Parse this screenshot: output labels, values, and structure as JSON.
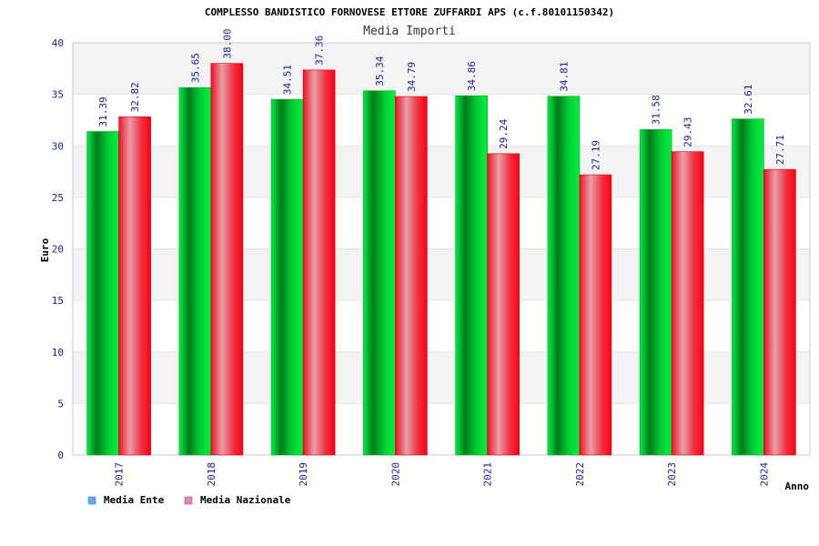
{
  "chart_data": {
    "type": "bar",
    "title": "COMPLESSO BANDISTICO FORNOVESE ETTORE ZUFFARDI APS (c.f.80101150342)",
    "subtitle": "Media Importi",
    "xlabel": "Anno",
    "ylabel": "Euro",
    "ylim": [
      0,
      40
    ],
    "yticks": [
      0,
      5,
      10,
      15,
      20,
      25,
      30,
      35,
      40
    ],
    "grid": true,
    "legend_position": "bottom-left",
    "categories": [
      "2017",
      "2018",
      "2019",
      "2020",
      "2021",
      "2022",
      "2023",
      "2024"
    ],
    "series": [
      {
        "name": "Media Ente",
        "values": [
          31.39,
          35.65,
          34.51,
          35.34,
          34.86,
          34.81,
          31.58,
          32.61
        ],
        "color": "#00cc33",
        "legend_color": "#66aaee"
      },
      {
        "name": "Media Nazionale",
        "values": [
          32.82,
          38.0,
          37.36,
          34.79,
          29.24,
          27.19,
          29.43,
          27.71
        ],
        "color": "#ee1122",
        "legend_color": "#dd88bb"
      }
    ],
    "value_labels": [
      [
        "31.39",
        "35.65",
        "34.51",
        "35.34",
        "34.86",
        "34.81",
        "31.58",
        "32.61"
      ],
      [
        "32.82",
        "38.00",
        "37.36",
        "34.79",
        "29.24",
        "27.19",
        "29.43",
        "27.71"
      ]
    ]
  }
}
